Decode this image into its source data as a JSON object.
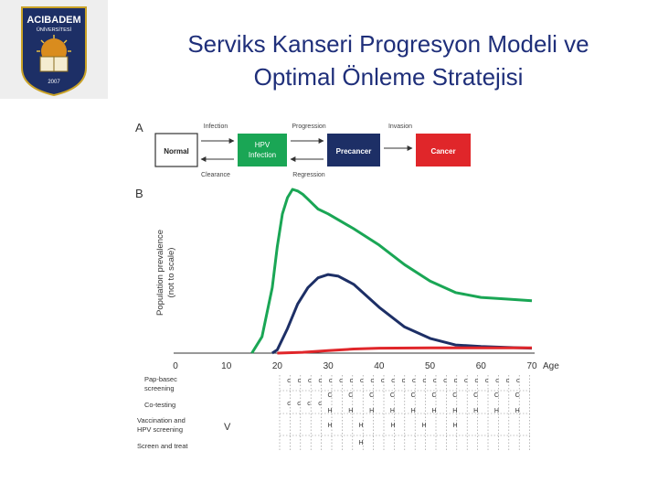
{
  "slide": {
    "title_line1": "Serviks Kanseri Progresyon Modeli ve",
    "title_line2": "Optimal Önleme Stratejisi"
  },
  "logo": {
    "text_top": "ACIBADEM",
    "text_bottom": "ÜNİVERSİTESİ",
    "year": "2007"
  },
  "panel_a": {
    "label": "A",
    "boxes": {
      "normal": "Normal",
      "hpv_line1": "HPV",
      "hpv_line2": "Infection",
      "precancer": "Precancer",
      "cancer": "Cancer"
    },
    "arrows": {
      "infection": "Infection",
      "clearance": "Clearance",
      "progression": "Progression",
      "regression": "Regression",
      "invasion": "Invasion"
    },
    "colors": {
      "hpv": "#1aa655",
      "precancer": "#1d2f66",
      "cancer": "#e0262a",
      "normal": "#ffffff"
    }
  },
  "chart_data": {
    "type": "line",
    "panel_label": "B",
    "title": "",
    "ylabel_line1": "Population prevalence",
    "ylabel_line2": "(not to scale)",
    "xlabel": "Age",
    "xlim": [
      0,
      70
    ],
    "ylim": [
      0,
      100
    ],
    "x_ticks": [
      "0",
      "10",
      "20",
      "30",
      "40",
      "50",
      "60",
      "70"
    ],
    "series": [
      {
        "name": "HPV infection",
        "color": "#1aa655",
        "points": [
          [
            15,
            0
          ],
          [
            17,
            10
          ],
          [
            19,
            40
          ],
          [
            20,
            65
          ],
          [
            21,
            85
          ],
          [
            22,
            95
          ],
          [
            23,
            100
          ],
          [
            24,
            99
          ],
          [
            25,
            97
          ],
          [
            26,
            94
          ],
          [
            27,
            91
          ],
          [
            28,
            88
          ],
          [
            30,
            85
          ],
          [
            35,
            76
          ],
          [
            40,
            66
          ],
          [
            45,
            54
          ],
          [
            50,
            44
          ],
          [
            55,
            37
          ],
          [
            60,
            34
          ],
          [
            65,
            33
          ],
          [
            70,
            32
          ]
        ]
      },
      {
        "name": "Precancer",
        "color": "#1d2f66",
        "points": [
          [
            19,
            0
          ],
          [
            20,
            2
          ],
          [
            22,
            15
          ],
          [
            24,
            30
          ],
          [
            26,
            40
          ],
          [
            28,
            46
          ],
          [
            30,
            48
          ],
          [
            32,
            47
          ],
          [
            35,
            42
          ],
          [
            40,
            28
          ],
          [
            45,
            16
          ],
          [
            50,
            9
          ],
          [
            55,
            5
          ],
          [
            60,
            4
          ],
          [
            65,
            3.5
          ],
          [
            70,
            3
          ]
        ]
      },
      {
        "name": "Cancer",
        "color": "#e0262a",
        "points": [
          [
            20,
            0
          ],
          [
            25,
            0.5
          ],
          [
            30,
            1.5
          ],
          [
            35,
            2.5
          ],
          [
            40,
            3
          ],
          [
            50,
            3.2
          ],
          [
            60,
            3.2
          ],
          [
            70,
            3.2
          ]
        ]
      }
    ]
  },
  "panel_c": {
    "rows": [
      {
        "label_line1": "Pap-basec",
        "label_line2": "screening"
      },
      {
        "label_line1": "Co-testing",
        "label_line2": ""
      },
      {
        "label_line1": "Vaccination and",
        "label_line2": "HPV screening"
      },
      {
        "label_line1": "Screen and treat",
        "label_line2": ""
      }
    ],
    "v_marker": "V",
    "letters": {
      "c": "c",
      "C": "C",
      "H": "H"
    }
  }
}
